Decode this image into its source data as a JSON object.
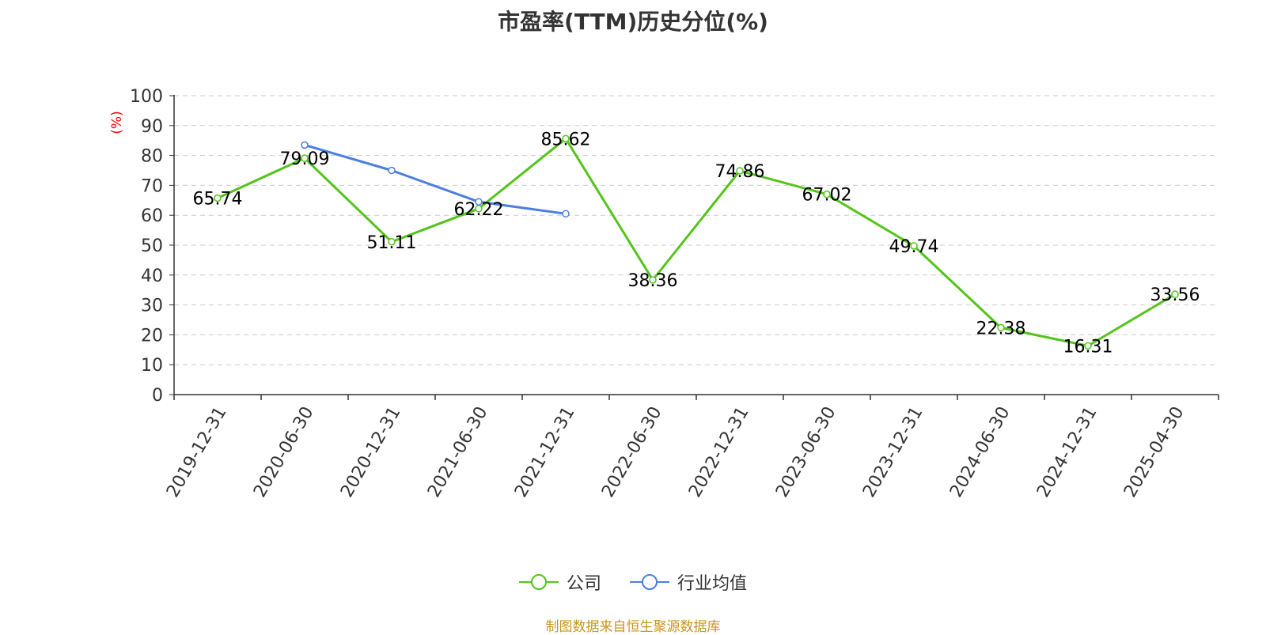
{
  "title": "市盈率(TTM)历史分位(%)",
  "source": "制图数据来自恒生聚源数据库",
  "colors": {
    "company": "#52c41a",
    "industry": "#4a7fe0",
    "unit_label": "#ff0000"
  },
  "chart_data": {
    "type": "line",
    "title": "市盈率(TTM)历史分位(%)",
    "ylabel": "(%)",
    "ylim": [
      0,
      100
    ],
    "yticks": [
      0,
      10,
      20,
      30,
      40,
      50,
      60,
      70,
      80,
      90,
      100
    ],
    "categories": [
      "2019-12-31",
      "2020-06-30",
      "2020-12-31",
      "2021-06-30",
      "2021-12-31",
      "2022-06-30",
      "2022-12-31",
      "2023-06-30",
      "2023-12-31",
      "2024-06-30",
      "2024-12-31",
      "2025-04-30"
    ],
    "grid": true,
    "legend_position": "bottom",
    "series": [
      {
        "name": "公司",
        "values": [
          65.74,
          79.09,
          51.11,
          62.22,
          85.62,
          38.36,
          74.86,
          67.02,
          49.74,
          22.38,
          16.31,
          33.56
        ],
        "show_labels": true
      },
      {
        "name": "行业均值",
        "values": [
          null,
          83.5,
          75.0,
          64.5,
          60.5,
          null,
          null,
          null,
          null,
          null,
          null,
          null
        ],
        "show_labels": false
      }
    ]
  }
}
